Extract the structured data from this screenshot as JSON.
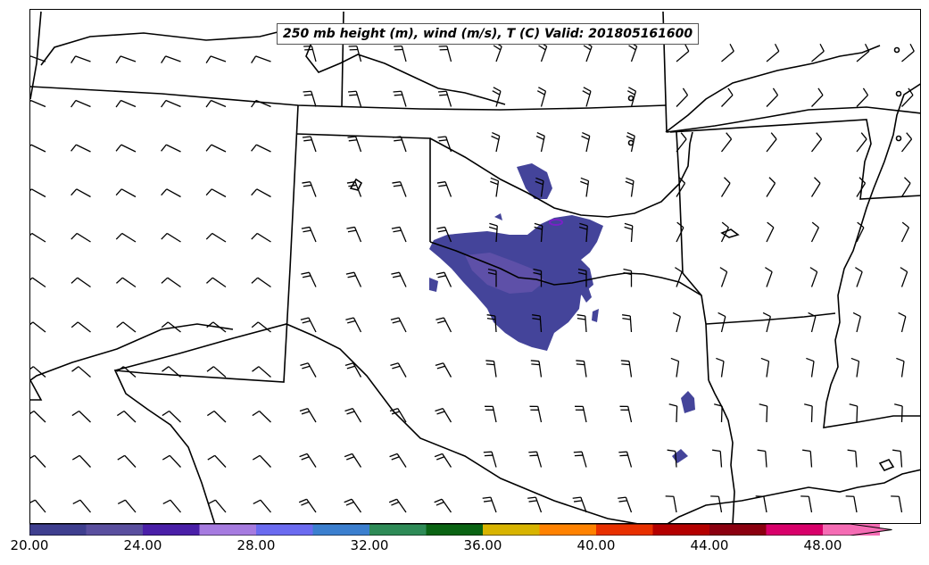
{
  "title": "250 mb height (m), wind (m/s), T (C) Valid: 201805161600",
  "colorbar": {
    "colors": [
      "#3f3f8f",
      "#5a4f9f",
      "#4a1fa8",
      "#a67be0",
      "#6b6bf0",
      "#3b7fcf",
      "#2e8b57",
      "#0a6414",
      "#d8b400",
      "#ff8200",
      "#e83000",
      "#b40000",
      "#8b0010",
      "#d8006a",
      "#f56cb4"
    ],
    "tick_labels": [
      "20.00",
      "24.00",
      "28.00",
      "32.00",
      "36.00",
      "40.00",
      "44.00",
      "48.00"
    ]
  },
  "temperature_region_color": "#44449a",
  "temperature_region_edge": "#5e50a8",
  "hotspot_color": "#7a20c8"
}
